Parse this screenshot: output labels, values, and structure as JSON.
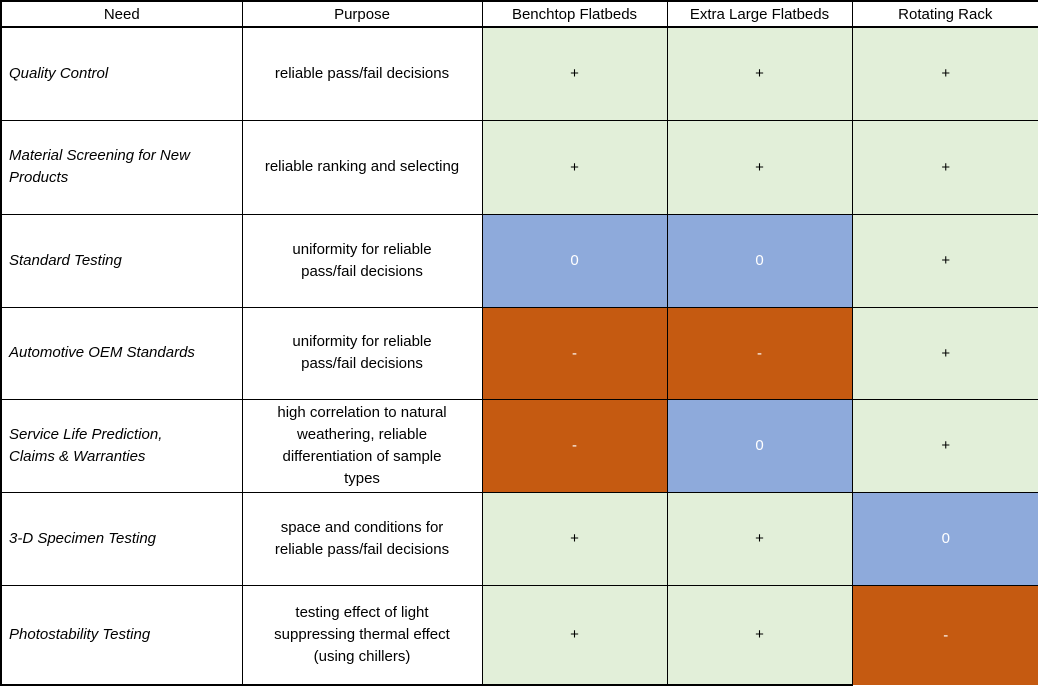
{
  "table": {
    "headers": {
      "need": "Need",
      "purpose": "Purpose",
      "benchtop": "Benchtop Flatbeds",
      "extra_large": "Extra Large Flatbeds",
      "rotating": "Rotating Rack"
    },
    "rows": [
      {
        "need": "Quality Control",
        "purpose": "reliable pass/fail decisions",
        "ratings": [
          {
            "column": "Benchtop Flatbeds",
            "symbol": "+",
            "level": "positive"
          },
          {
            "column": "Extra Large Flatbeds",
            "symbol": "+",
            "level": "positive"
          },
          {
            "column": "Rotating Rack",
            "symbol": "+",
            "level": "positive"
          }
        ]
      },
      {
        "need": "Material Screening for New\nProducts",
        "purpose": "reliable ranking and selecting",
        "ratings": [
          {
            "column": "Benchtop Flatbeds",
            "symbol": "+",
            "level": "positive"
          },
          {
            "column": "Extra Large Flatbeds",
            "symbol": "+",
            "level": "positive"
          },
          {
            "column": "Rotating Rack",
            "symbol": "+",
            "level": "positive"
          }
        ]
      },
      {
        "need": "Standard Testing",
        "purpose": "uniformity for reliable\npass/fail decisions",
        "ratings": [
          {
            "column": "Benchtop Flatbeds",
            "symbol": "0",
            "level": "neutral"
          },
          {
            "column": "Extra Large Flatbeds",
            "symbol": "0",
            "level": "neutral"
          },
          {
            "column": "Rotating Rack",
            "symbol": "+",
            "level": "positive"
          }
        ]
      },
      {
        "need": "Automotive OEM Standards",
        "purpose": "uniformity for reliable\npass/fail decisions",
        "ratings": [
          {
            "column": "Benchtop Flatbeds",
            "symbol": "-",
            "level": "negative"
          },
          {
            "column": "Extra Large Flatbeds",
            "symbol": "-",
            "level": "negative"
          },
          {
            "column": "Rotating Rack",
            "symbol": "+",
            "level": "positive"
          }
        ]
      },
      {
        "need": "Service Life Prediction,\nClaims & Warranties",
        "purpose": "high correlation to natural\nweathering, reliable\ndifferentiation of sample\ntypes",
        "ratings": [
          {
            "column": "Benchtop Flatbeds",
            "symbol": "-",
            "level": "negative"
          },
          {
            "column": "Extra Large Flatbeds",
            "symbol": "0",
            "level": "neutral"
          },
          {
            "column": "Rotating Rack",
            "symbol": "+",
            "level": "positive"
          }
        ]
      },
      {
        "need": "3-D Specimen Testing",
        "purpose": "space and conditions for\nreliable pass/fail decisions",
        "ratings": [
          {
            "column": "Benchtop Flatbeds",
            "symbol": "+",
            "level": "positive"
          },
          {
            "column": "Extra Large Flatbeds",
            "symbol": "+",
            "level": "positive"
          },
          {
            "column": "Rotating Rack",
            "symbol": "0",
            "level": "neutral"
          }
        ]
      },
      {
        "need": "Photostability Testing",
        "purpose": "testing effect of light\nsuppressing thermal effect\n(using chillers)",
        "ratings": [
          {
            "column": "Benchtop Flatbeds",
            "symbol": "+",
            "level": "positive"
          },
          {
            "column": "Extra Large Flatbeds",
            "symbol": "+",
            "level": "positive"
          },
          {
            "column": "Rotating Rack",
            "symbol": "-",
            "level": "negative"
          }
        ]
      }
    ]
  },
  "colors": {
    "positive_bg": "#E2EFD9",
    "neutral_bg": "#8EAADB",
    "negative_bg": "#C55A11",
    "positive_symbol": "#000000",
    "neutral_symbol": "#FFFFFF",
    "negative_symbol": "#FFFFFF",
    "border": "#000000",
    "text": "#000000",
    "plain_cell_bg": "#FFFFFF"
  }
}
